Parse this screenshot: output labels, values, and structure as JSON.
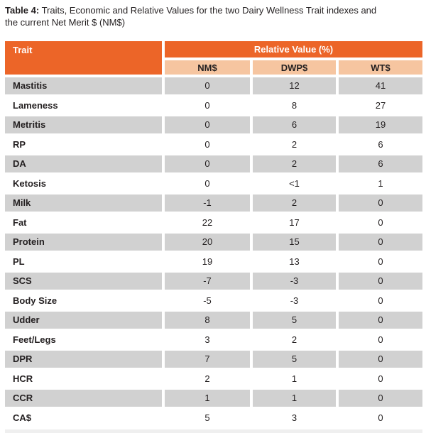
{
  "caption": {
    "label": "Table 4:",
    "text_line1": "Traits, Economic and Relative Values for the two Dairy Wellness Trait indexes and",
    "text_line2": "the current Net Merit $ (NM$)"
  },
  "table": {
    "trait_header": "Trait",
    "group_header": "Relative Value (%)",
    "columns": [
      "NM$",
      "DWP$",
      "WT$"
    ],
    "rows": [
      {
        "trait": "Mastitis",
        "values": [
          "0",
          "12",
          "41"
        ]
      },
      {
        "trait": "Lameness",
        "values": [
          "0",
          "8",
          "27"
        ]
      },
      {
        "trait": "Metritis",
        "values": [
          "0",
          "6",
          "19"
        ]
      },
      {
        "trait": "RP",
        "values": [
          "0",
          "2",
          "6"
        ]
      },
      {
        "trait": "DA",
        "values": [
          "0",
          "2",
          "6"
        ]
      },
      {
        "trait": "Ketosis",
        "values": [
          "0",
          "<1",
          "1"
        ]
      },
      {
        "trait": "Milk",
        "values": [
          "-1",
          "2",
          "0"
        ]
      },
      {
        "trait": "Fat",
        "values": [
          "22",
          "17",
          "0"
        ]
      },
      {
        "trait": "Protein",
        "values": [
          "20",
          "15",
          "0"
        ]
      },
      {
        "trait": "PL",
        "values": [
          "19",
          "13",
          "0"
        ]
      },
      {
        "trait": "SCS",
        "values": [
          "-7",
          "-3",
          "0"
        ]
      },
      {
        "trait": "Body Size",
        "values": [
          "-5",
          "-3",
          "0"
        ]
      },
      {
        "trait": "Udder",
        "values": [
          "8",
          "5",
          "0"
        ]
      },
      {
        "trait": "Feet/Legs",
        "values": [
          "3",
          "2",
          "0"
        ]
      },
      {
        "trait": "DPR",
        "values": [
          "7",
          "5",
          "0"
        ]
      },
      {
        "trait": "HCR",
        "values": [
          "2",
          "1",
          "0"
        ]
      },
      {
        "trait": "CCR",
        "values": [
          "1",
          "1",
          "0"
        ]
      },
      {
        "trait": "CA$",
        "values": [
          "5",
          "3",
          "0"
        ]
      }
    ]
  },
  "colors": {
    "header_orange": "#EC6528",
    "subheader_peach": "#F6C5A0",
    "row_gray": "#D1D1D1",
    "text_dark": "#231F20",
    "header_text": "#FFFFFF"
  }
}
